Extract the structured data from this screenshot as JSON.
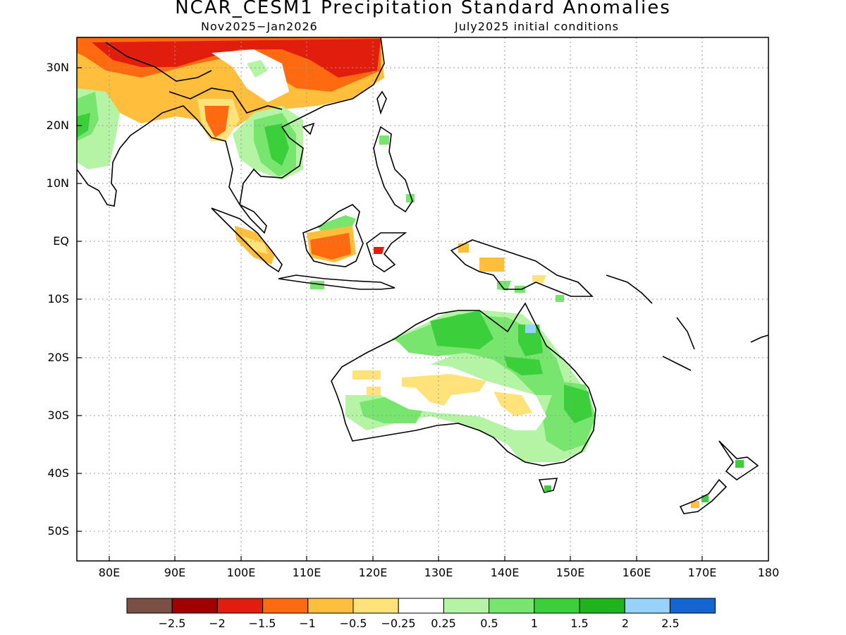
{
  "header": {
    "title": "NCAR_CESM1 Precipitation Standard Anomalies",
    "period": "Nov2025-Jan2026",
    "init": "July2025 initial conditions"
  },
  "map": {
    "lon_range": [
      75,
      180
    ],
    "lat_range": [
      -55,
      35
    ],
    "lat_labels": [
      "30N",
      "20N",
      "10N",
      "EQ",
      "10S",
      "20S",
      "30S",
      "40S",
      "50S"
    ],
    "lon_labels": [
      "80E",
      "90E",
      "100E",
      "110E",
      "120E",
      "130E",
      "140E",
      "150E",
      "160E",
      "170E",
      "180"
    ]
  },
  "colorbar": {
    "colors": [
      "#7b5044",
      "#a00000",
      "#e11e0e",
      "#ff6a10",
      "#ffbe3c",
      "#ffe27a",
      "#ffffff",
      "#b4f4a4",
      "#78e66e",
      "#3ccf3c",
      "#1eb41e",
      "#96d2fa",
      "#1464d2"
    ],
    "labels": [
      "-2.5",
      "-2",
      "-1.5",
      "-1",
      "-0.5",
      "-0.25",
      "0.25",
      "0.5",
      "1",
      "1.5",
      "2",
      "2.5"
    ]
  }
}
